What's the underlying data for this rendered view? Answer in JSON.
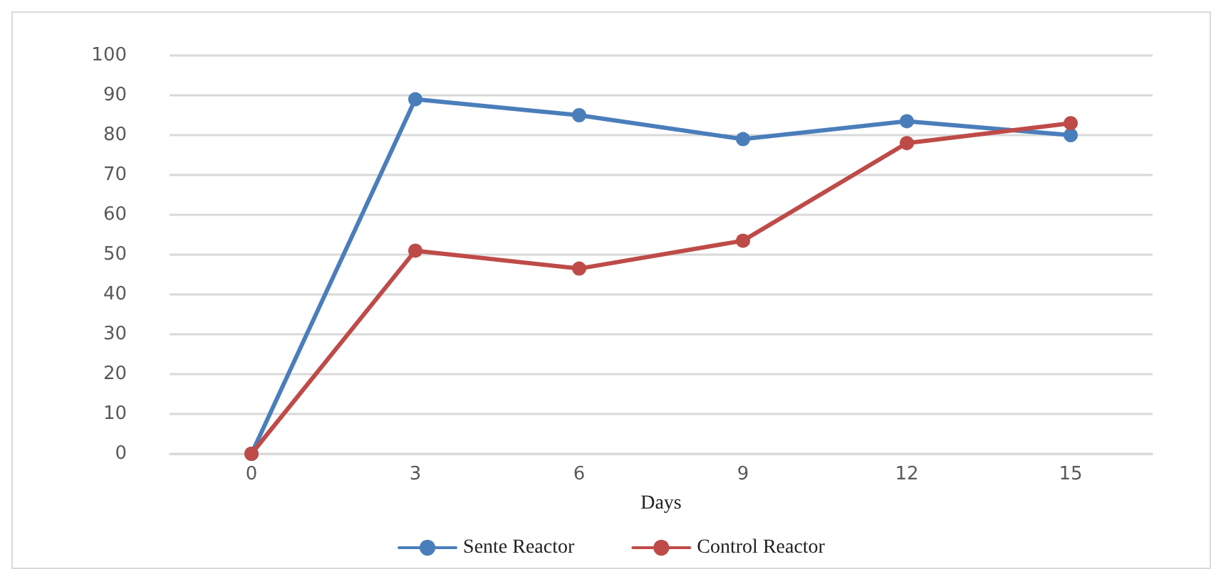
{
  "chart_data": {
    "type": "line",
    "xlabel": "Days",
    "categories": [
      "0",
      "3",
      "6",
      "9",
      "12",
      "15"
    ],
    "series": [
      {
        "name": "Sente Reactor",
        "color": "#4a7ebb",
        "values": [
          0,
          89,
          85,
          79,
          83.5,
          80
        ]
      },
      {
        "name": "Control Reactor",
        "color": "#be4b48",
        "values": [
          0,
          51,
          46.5,
          53.5,
          78,
          83
        ]
      }
    ],
    "ylim": [
      0,
      100
    ],
    "yticks": [
      0,
      10,
      20,
      30,
      40,
      50,
      60,
      70,
      80,
      90,
      100
    ],
    "grid": "y",
    "legend": "bottom",
    "marker": "circle",
    "line_style": "solid"
  }
}
